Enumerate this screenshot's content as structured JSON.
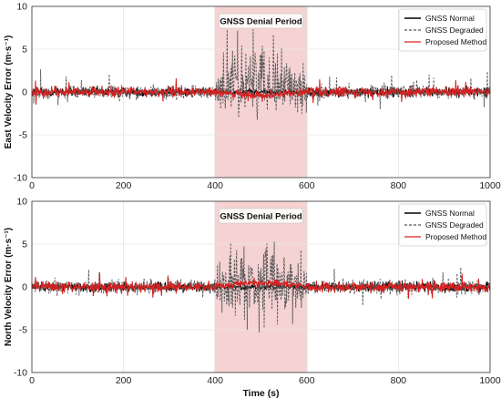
{
  "chart_data": [
    {
      "type": "line",
      "ylabel": "East Velocity Error (m·s⁻¹)",
      "xlabel": "",
      "xlim": [
        0,
        1000
      ],
      "ylim": [
        -10,
        10
      ],
      "xticks": [
        0,
        200,
        400,
        600,
        800,
        1000
      ],
      "yticks": [
        -10,
        -5,
        0,
        5,
        10
      ],
      "grid": true,
      "legend": "top-right",
      "shaded_region": {
        "x_start": 400,
        "x_end": 600,
        "label": "GNSS Denial Period",
        "color": "#f2c4c4"
      },
      "series": [
        {
          "name": "GNSS Normal",
          "color": "#000000",
          "style": "solid",
          "description": "noise around 0, amplitude ~1 m/s throughout"
        },
        {
          "name": "GNSS Degraded",
          "color": "#555555",
          "style": "dashed",
          "description": "noise ~1 m/s outside denial; within 400-600 s large oscillations ranging about -5 to 7 m/s"
        },
        {
          "name": "Proposed Method",
          "color": "#d62020",
          "style": "solid",
          "description": "noise ~1 m/s; slight drift within 400-600 s to about -1 to 1 m/s"
        }
      ]
    },
    {
      "type": "line",
      "ylabel": "North Velocity Error (m·s⁻¹)",
      "xlabel": "Time (s)",
      "xlim": [
        0,
        1000
      ],
      "ylim": [
        -10,
        10
      ],
      "xticks": [
        0,
        200,
        400,
        600,
        800,
        1000
      ],
      "yticks": [
        -10,
        -5,
        0,
        5,
        10
      ],
      "grid": true,
      "legend": "top-right",
      "shaded_region": {
        "x_start": 400,
        "x_end": 600,
        "label": "GNSS Denial Period",
        "color": "#f2c4c4"
      },
      "series": [
        {
          "name": "GNSS Normal",
          "color": "#000000",
          "style": "solid",
          "description": "noise around 0, amplitude ~1 m/s throughout"
        },
        {
          "name": "GNSS Degraded",
          "color": "#555555",
          "style": "dashed",
          "description": "noise ~1 m/s outside denial; within 400-600 s large oscillations ranging about -6 to 7 m/s"
        },
        {
          "name": "Proposed Method",
          "color": "#d62020",
          "style": "solid",
          "description": "noise ~1 m/s; slight bias up to ~1 m/s within 400-600 s"
        }
      ]
    }
  ]
}
